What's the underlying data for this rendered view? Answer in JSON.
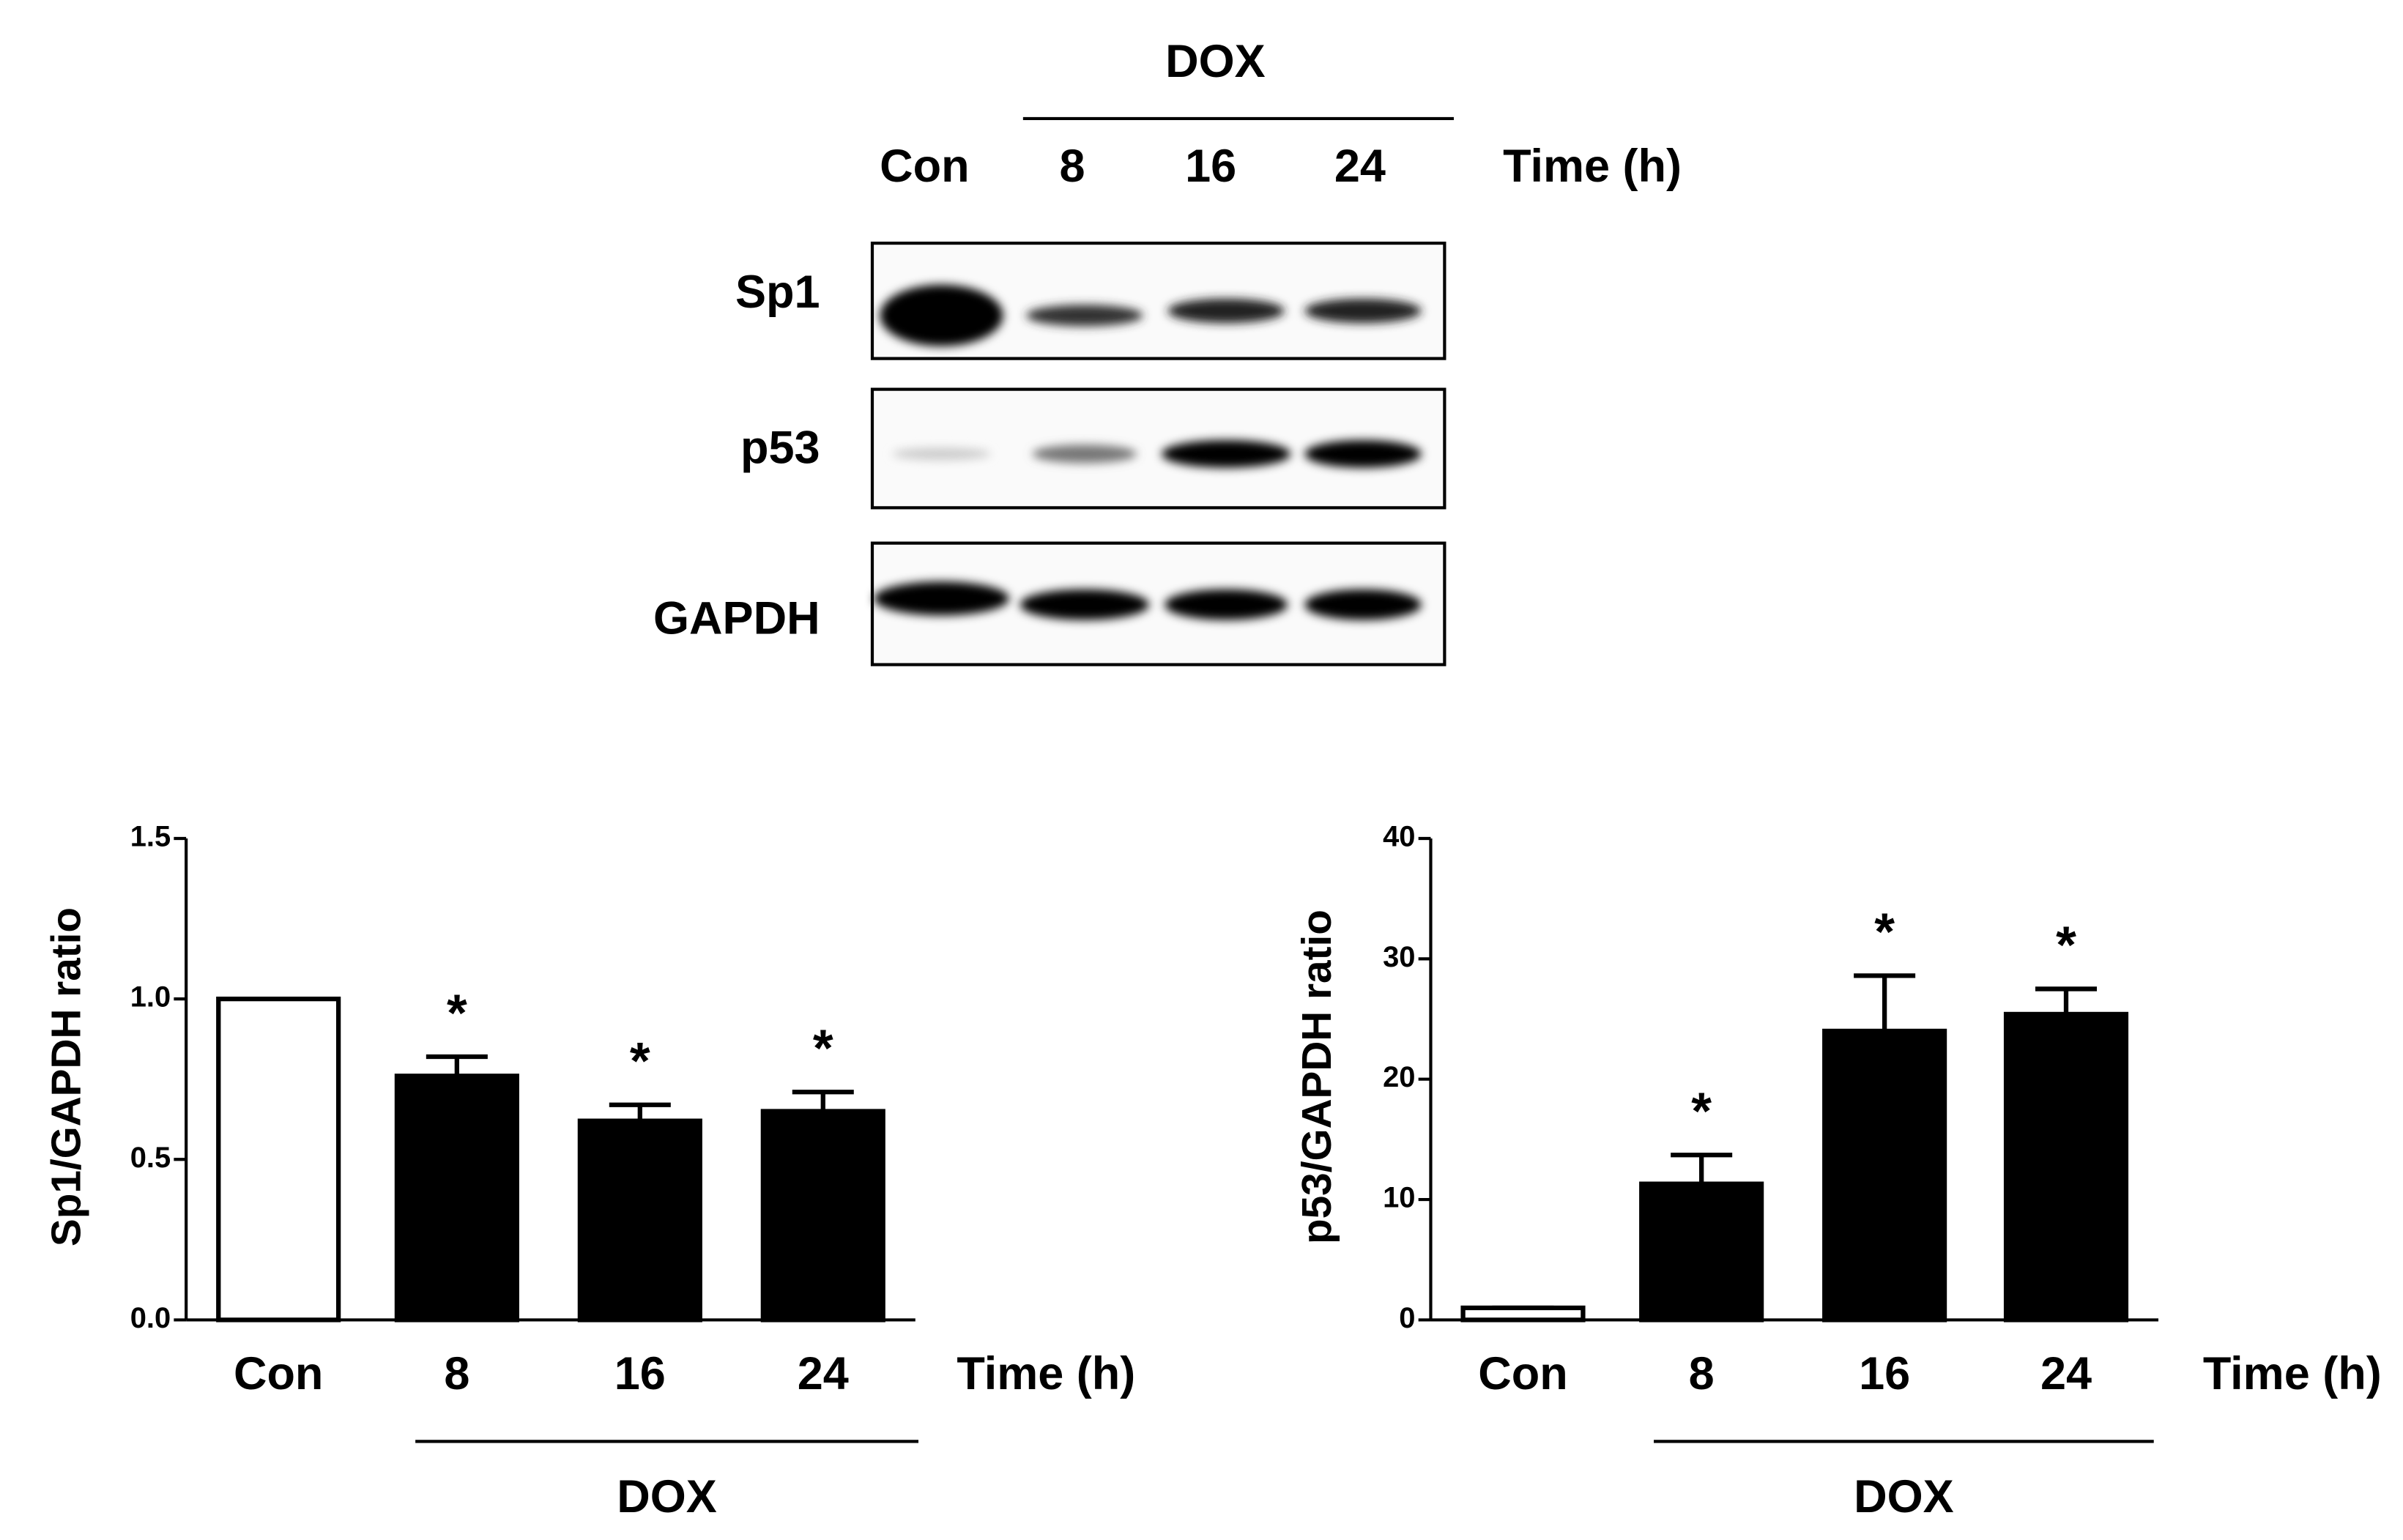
{
  "blot": {
    "group_label": "DOX",
    "lanes": [
      "Con",
      "8",
      "16",
      "24"
    ],
    "time_label": "Time (h)",
    "proteins": [
      "Sp1",
      "p53",
      "GAPDH"
    ]
  },
  "chart_data": [
    {
      "type": "bar",
      "ylabel": "Sp1/GAPDH ratio",
      "xlabel": "Time (h)",
      "group_label": "DOX",
      "categories": [
        "Con",
        "8",
        "16",
        "24"
      ],
      "values": [
        1.0,
        0.76,
        0.62,
        0.65
      ],
      "errors": [
        0,
        0.06,
        0.05,
        0.06
      ],
      "annotations": [
        null,
        "*",
        "*",
        "*"
      ],
      "colors": [
        "#ffffff",
        "#000000",
        "#000000",
        "#000000"
      ],
      "ylim": [
        0,
        1.5
      ],
      "yticks": [
        {
          "value": 0,
          "label": "0.0"
        },
        0.5,
        {
          "value": 1,
          "label": "1.0"
        },
        1.5
      ]
    },
    {
      "type": "bar",
      "ylabel": "p53/GAPDH ratio",
      "xlabel": "Time (h)",
      "group_label": "DOX",
      "categories": [
        "Con",
        "8",
        "16",
        "24"
      ],
      "values": [
        1,
        11.3,
        24.0,
        25.4
      ],
      "errors": [
        0,
        2.4,
        4.6,
        2.1
      ],
      "annotations": [
        null,
        "*",
        "*",
        "*"
      ],
      "colors": [
        "#ffffff",
        "#000000",
        "#000000",
        "#000000"
      ],
      "ylim": [
        0,
        40
      ],
      "yticks": [
        0,
        10,
        20,
        30,
        40
      ]
    }
  ]
}
